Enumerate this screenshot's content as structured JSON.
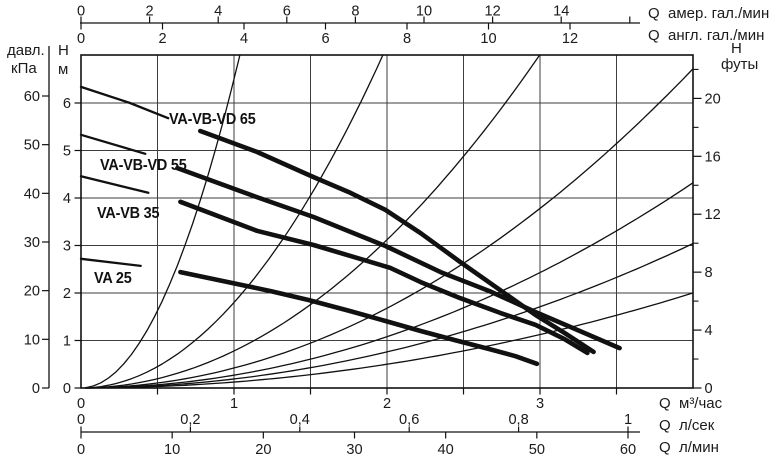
{
  "colors": {
    "ink": "#111111",
    "grid": "#3d3d3d",
    "text": "#1b1b1b",
    "bg": "#ffffff"
  },
  "labels": {
    "pressure1": "давл.",
    "pressure2": "кПа",
    "head_m1": "Н",
    "head_m2": "м",
    "head_ft1": "Н",
    "head_ft2": "футы"
  },
  "axis_titles": {
    "top_us": "Q  амер. гал./мин",
    "top_uk": "Q  англ. гал./мин",
    "bottom_m3": "Q  м³/час",
    "bottom_ls": "Q  л/сек",
    "bottom_lmin": "Q  л/мин"
  },
  "chart_data": {
    "type": "line",
    "title": "",
    "grid": true,
    "axes": {
      "top_us_gpm": {
        "unit": "амер. гал./мин",
        "ticks": [
          0,
          2,
          4,
          6,
          8,
          10,
          12,
          14
        ],
        "extra_unlabeled_tick": 16
      },
      "top_uk_gpm": {
        "unit": "англ. гал./мин",
        "ticks": [
          0,
          2,
          4,
          6,
          8,
          10,
          12
        ]
      },
      "left_kpa": {
        "label": "давл.",
        "unit": "кПа",
        "ticks": [
          0,
          10,
          20,
          30,
          40,
          50,
          60
        ]
      },
      "left_m": {
        "label": "Н",
        "unit": "м",
        "ticks": [
          0,
          1,
          2,
          3,
          4,
          5,
          6
        ]
      },
      "right_ft": {
        "label": "Н",
        "unit": "футы",
        "major_ticks": [
          0,
          4,
          8,
          12,
          16,
          20
        ],
        "minor_ticks": [
          2,
          6,
          10,
          14,
          18,
          22
        ]
      },
      "bottom_m3h": {
        "unit": "м³/час",
        "tick_labels": [
          "0",
          "1",
          "2",
          "3"
        ],
        "tick_values": [
          0,
          1,
          2,
          3
        ],
        "minor_tick_step": 0.5,
        "range": [
          0,
          4
        ]
      },
      "bottom_ls": {
        "unit": "л/сек",
        "tick_labels": [
          "0",
          "0,2",
          "0,4",
          "0,6",
          "0,8",
          "1"
        ],
        "tick_values": [
          0,
          0.2,
          0.4,
          0.6,
          0.8,
          1.0
        ]
      },
      "bottom_lmin": {
        "unit": "л/мин",
        "ticks": [
          0,
          10,
          20,
          30,
          40,
          50,
          60
        ]
      }
    },
    "series": [
      {
        "name": "VA-VB-VD 65",
        "lead_points": [
          [
            0,
            6.34
          ],
          [
            0.32,
            6.0
          ],
          [
            0.57,
            5.68
          ]
        ],
        "points": [
          [
            0.78,
            5.41
          ],
          [
            1.15,
            4.97
          ],
          [
            1.52,
            4.44
          ],
          [
            1.76,
            4.11
          ],
          [
            1.99,
            3.75
          ],
          [
            2.22,
            3.26
          ],
          [
            2.48,
            2.65
          ],
          [
            2.74,
            2.06
          ],
          [
            2.97,
            1.54
          ],
          [
            3.16,
            1.16
          ],
          [
            3.35,
            0.76
          ]
        ]
      },
      {
        "name": "VA-VB-VD 55",
        "lead_points": [
          [
            0,
            5.33
          ],
          [
            0.42,
            4.93
          ]
        ],
        "points": [
          [
            0.63,
            4.63
          ],
          [
            1.15,
            4.02
          ],
          [
            1.52,
            3.6
          ],
          [
            1.99,
            2.99
          ],
          [
            2.35,
            2.44
          ],
          [
            2.67,
            2.04
          ],
          [
            2.97,
            1.6
          ],
          [
            3.26,
            1.2
          ],
          [
            3.52,
            0.84
          ]
        ]
      },
      {
        "name": "VA-VB 35",
        "lead_points": [
          [
            0,
            4.46
          ],
          [
            0.44,
            4.11
          ]
        ],
        "points": [
          [
            0.65,
            3.92
          ],
          [
            1.15,
            3.31
          ],
          [
            1.52,
            3.01
          ],
          [
            2.02,
            2.53
          ],
          [
            2.22,
            2.23
          ],
          [
            2.48,
            1.89
          ],
          [
            2.74,
            1.58
          ],
          [
            2.97,
            1.33
          ],
          [
            3.16,
            1.03
          ],
          [
            3.31,
            0.74
          ]
        ]
      },
      {
        "name": "VA 25",
        "lead_points": [
          [
            0,
            2.72
          ],
          [
            0.39,
            2.57
          ]
        ],
        "points": [
          [
            0.65,
            2.44
          ],
          [
            0.93,
            2.25
          ],
          [
            1.24,
            2.04
          ],
          [
            1.49,
            1.85
          ],
          [
            1.76,
            1.62
          ],
          [
            1.99,
            1.41
          ],
          [
            2.22,
            1.2
          ],
          [
            2.44,
            1.01
          ],
          [
            2.67,
            0.82
          ],
          [
            2.84,
            0.67
          ],
          [
            2.98,
            0.51
          ]
        ]
      }
    ],
    "system_curves": {
      "model": "H = k × Q², Q in м³/час, H in м",
      "k_values": [
        6.5,
        1.8,
        0.78,
        0.42,
        0.27,
        0.19,
        0.125
      ]
    },
    "x_axis_label": "Q  м³/час",
    "y_axis_label": "Н  м",
    "xlim_m3h": [
      0,
      4
    ],
    "ylim_m": [
      0,
      7
    ]
  }
}
